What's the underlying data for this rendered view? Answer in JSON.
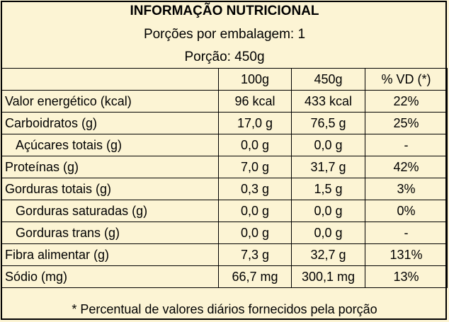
{
  "header": {
    "title": "INFORMAÇÃO NUTRICIONAL",
    "servings_per_package": "Porções por embalagem: 1",
    "portion": "Porção: 450g"
  },
  "columns": [
    "",
    "100g",
    "450g",
    "% VD (*)"
  ],
  "rows": [
    {
      "label": "Valor energético (kcal)",
      "per100": "96 kcal",
      "per_portion": "433 kcal",
      "vd": "22%",
      "indent": false
    },
    {
      "label": "Carboidratos (g)",
      "per100": "17,0 g",
      "per_portion": "76,5 g",
      "vd": "25%",
      "indent": false
    },
    {
      "label": "Açúcares totais (g)",
      "per100": "0,0 g",
      "per_portion": "0,0 g",
      "vd": "-",
      "indent": true
    },
    {
      "label": "Proteínas (g)",
      "per100": "7,0 g",
      "per_portion": "31,7 g",
      "vd": "42%",
      "indent": false
    },
    {
      "label": "Gorduras totais (g)",
      "per100": "0,3 g",
      "per_portion": "1,5 g",
      "vd": "3%",
      "indent": false
    },
    {
      "label": "Gorduras saturadas (g)",
      "per100": "0,0 g",
      "per_portion": "0,0 g",
      "vd": "0%",
      "indent": true
    },
    {
      "label": "Gorduras trans (g)",
      "per100": "0,0 g",
      "per_portion": "0,0 g",
      "vd": "-",
      "indent": true
    },
    {
      "label": "Fibra alimentar (g)",
      "per100": "7,3 g",
      "per_portion": "32,7 g",
      "vd": "131%",
      "indent": false
    },
    {
      "label": "Sódio (mg)",
      "per100": "66,7 mg",
      "per_portion": "300,1 mg",
      "vd": "13%",
      "indent": false
    }
  ],
  "footnote": "* Percentual de valores diários fornecidos pela porção",
  "colors": {
    "background": "#fcf4d4",
    "border": "#000000"
  }
}
